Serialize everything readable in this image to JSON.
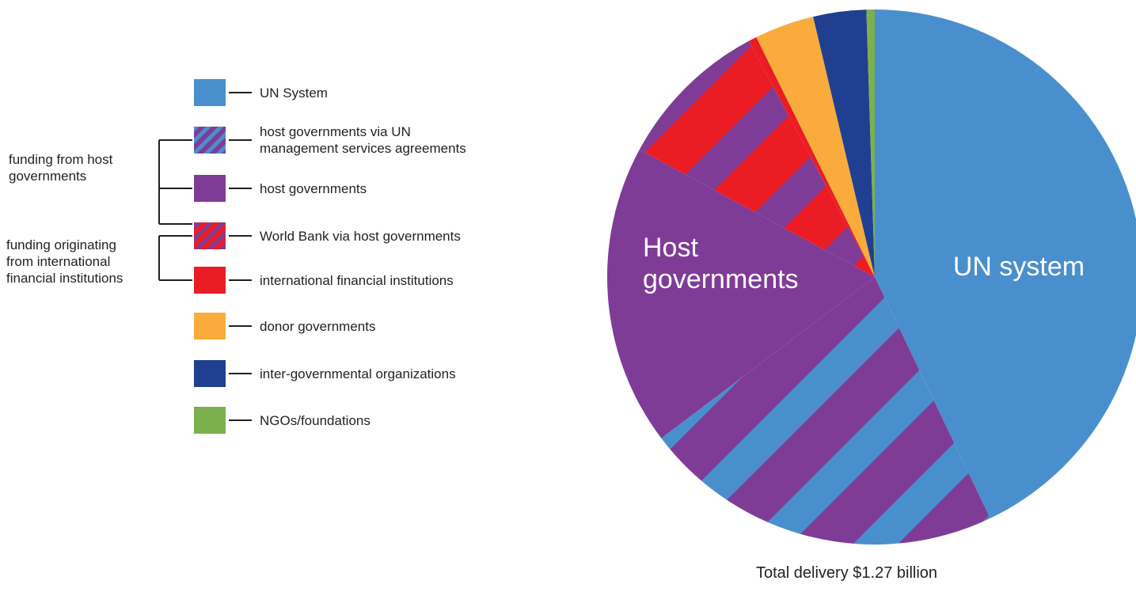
{
  "chart_data": {
    "type": "pie",
    "caption": "Total delivery $1.27 billion",
    "slices": [
      {
        "key": "un_system",
        "value": 42.9,
        "color": "#4a8fcd",
        "pattern": "solid"
      },
      {
        "key": "host_via_un_msa",
        "value": 21.8,
        "color": "#4a8fcd",
        "color2": "#7e3c96",
        "pattern": "stripes"
      },
      {
        "key": "host_governments",
        "value": 18.2,
        "color": "#7e3c96",
        "pattern": "solid"
      },
      {
        "key": "world_bank_via_host",
        "value": 9.3,
        "color": "#7e3c96",
        "color2": "#ec1c24",
        "pattern": "stripes"
      },
      {
        "key": "ifi",
        "value": 0.5,
        "color": "#ec1c24",
        "pattern": "solid"
      },
      {
        "key": "donor_governments",
        "value": 3.6,
        "color": "#f9ac3c",
        "pattern": "solid"
      },
      {
        "key": "igo",
        "value": 3.2,
        "color": "#203f91",
        "pattern": "solid"
      },
      {
        "key": "ngos",
        "value": 0.5,
        "color": "#7cb04f",
        "pattern": "solid"
      }
    ],
    "slice_labels": {
      "un_system": "UN system",
      "host_governments": [
        "Host",
        "governments"
      ]
    },
    "legend": [
      {
        "label": "UN System",
        "swatch": "un_system"
      },
      {
        "label": [
          "host governments via UN",
          "management services agreements"
        ],
        "swatch": "host_via_un_msa"
      },
      {
        "label": "host governments",
        "swatch": "host_governments"
      },
      {
        "label": "World Bank via host governments",
        "swatch": "world_bank_via_host"
      },
      {
        "label": "international financial institutions",
        "swatch": "ifi"
      },
      {
        "label": "donor governments",
        "swatch": "donor_governments"
      },
      {
        "label": "inter-governmental organizations",
        "swatch": "igo"
      },
      {
        "label": "NGOs/foundations",
        "swatch": "ngos"
      }
    ],
    "groups": [
      {
        "label": [
          "funding from host",
          "governments"
        ],
        "spans": [
          "host_via_un_msa",
          "world_bank_via_host"
        ]
      },
      {
        "label": [
          "funding originating",
          "from international",
          "financial institutions"
        ],
        "spans": [
          "world_bank_via_host",
          "ifi"
        ]
      }
    ]
  }
}
